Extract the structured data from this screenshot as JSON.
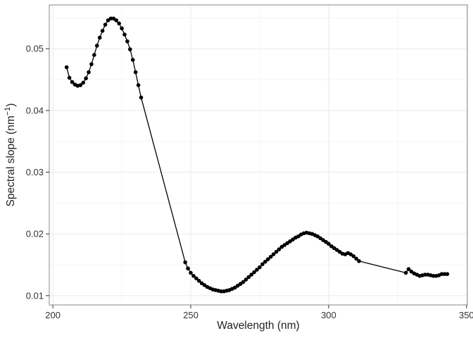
{
  "figure": {
    "background": "#ffffff",
    "panel_border_color": "#8a8a8a",
    "grid_major_color": "#e9e9e9",
    "grid_minor_color": "#f5f5f5",
    "tick_mark_color": "#333333",
    "tick_label_color": "#333333",
    "axis_title_color": "#222222",
    "line_color": "#000000",
    "marker_color": "#000000"
  },
  "chart_data": {
    "type": "scatter",
    "mode": "lines+markers",
    "title": "",
    "xlabel": "Wavelength (nm)",
    "ylabel": "Spectral slope (nm⁻¹)",
    "ylabel_parts": {
      "base": "Spectral slope (nm",
      "superscript": "−1",
      "suffix": ")"
    },
    "xlim": [
      198.7,
      350.3
    ],
    "ylim": [
      0.0085,
      0.0571
    ],
    "grid": true,
    "legend": false,
    "x_major_ticks": [
      200,
      250,
      300,
      350
    ],
    "x_tick_labels": [
      "200",
      "250",
      "300",
      "350"
    ],
    "x_minor_gridlines": [
      225,
      275,
      325
    ],
    "y_major_ticks": [
      0.01,
      0.02,
      0.03,
      0.04,
      0.05
    ],
    "y_tick_labels": [
      "0.01",
      "0.02",
      "0.03",
      "0.04",
      "0.05"
    ],
    "y_minor_gridlines": [
      0.015,
      0.025,
      0.035,
      0.045,
      0.055
    ],
    "series": [
      {
        "name": "spectral-slope",
        "x": [
          205,
          206,
          207,
          208,
          209,
          210,
          211,
          212,
          213,
          214,
          215,
          216,
          217,
          218,
          219,
          220,
          221,
          222,
          223,
          224,
          225,
          226,
          227,
          228,
          229,
          230,
          231,
          232,
          248,
          249,
          250,
          251,
          252,
          253,
          254,
          255,
          256,
          257,
          258,
          259,
          260,
          261,
          262,
          263,
          264,
          265,
          266,
          267,
          268,
          269,
          270,
          271,
          272,
          273,
          274,
          275,
          276,
          277,
          278,
          279,
          280,
          281,
          282,
          283,
          284,
          285,
          286,
          287,
          288,
          289,
          290,
          291,
          292,
          293,
          294,
          295,
          296,
          297,
          298,
          299,
          300,
          301,
          302,
          303,
          304,
          305,
          306,
          307,
          308,
          309,
          310,
          311,
          328,
          329,
          330,
          331,
          332,
          333,
          334,
          335,
          336,
          337,
          338,
          339,
          340,
          341,
          342,
          343
        ],
        "y": [
          0.047,
          0.0453,
          0.0446,
          0.0442,
          0.044,
          0.0441,
          0.0445,
          0.0452,
          0.0462,
          0.0475,
          0.049,
          0.0505,
          0.0518,
          0.0529,
          0.0539,
          0.0546,
          0.0549,
          0.0549,
          0.0546,
          0.0541,
          0.0533,
          0.0523,
          0.0512,
          0.0499,
          0.0482,
          0.0462,
          0.0441,
          0.0421,
          0.0154,
          0.0144,
          0.0137,
          0.0132,
          0.0128,
          0.0124,
          0.012,
          0.0117,
          0.0114,
          0.0112,
          0.011,
          0.0109,
          0.0108,
          0.0107,
          0.0107,
          0.0108,
          0.0109,
          0.0111,
          0.0113,
          0.0116,
          0.0119,
          0.0122,
          0.0126,
          0.013,
          0.0134,
          0.0138,
          0.0142,
          0.0146,
          0.0151,
          0.0155,
          0.0159,
          0.0163,
          0.0167,
          0.0171,
          0.0175,
          0.0179,
          0.0182,
          0.0185,
          0.0188,
          0.0191,
          0.0194,
          0.0196,
          0.0199,
          0.0201,
          0.0202,
          0.0201,
          0.02,
          0.0198,
          0.0196,
          0.0193,
          0.019,
          0.0187,
          0.0184,
          0.018,
          0.0177,
          0.0174,
          0.0171,
          0.0168,
          0.0167,
          0.0169,
          0.0167,
          0.0164,
          0.016,
          0.0156,
          0.0137,
          0.0143,
          0.0139,
          0.0136,
          0.0134,
          0.0132,
          0.0133,
          0.0134,
          0.0134,
          0.0133,
          0.0132,
          0.0132,
          0.0133,
          0.0135,
          0.0135,
          0.0135
        ]
      }
    ]
  }
}
